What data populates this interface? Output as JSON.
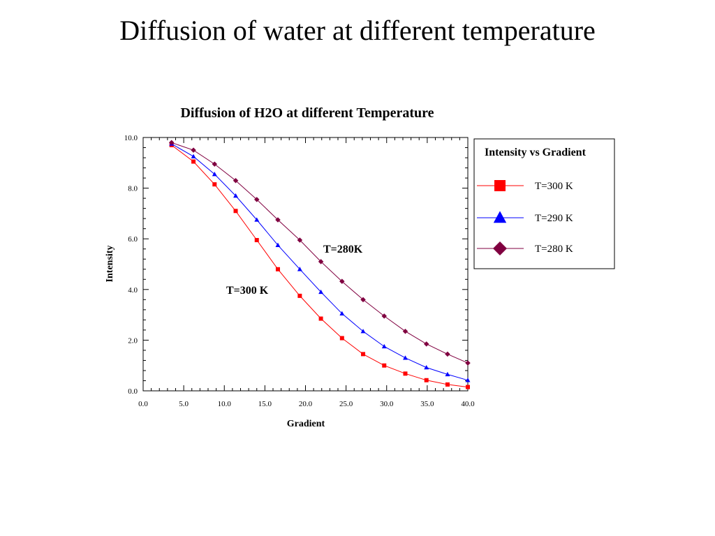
{
  "slide": {
    "title": "Diffusion of water at different temperature"
  },
  "colors": {
    "t300": "#ff0000",
    "t290": "#0000ff",
    "t280": "#800040"
  },
  "chart_data": {
    "type": "line",
    "title": "Diffusion of H2O at different Temperature",
    "xlabel": "Gradient",
    "ylabel": "Intensity",
    "xlim": [
      0.0,
      40.0
    ],
    "ylim": [
      0.0,
      10.0
    ],
    "x_ticks": [
      "0.0",
      "5.0",
      "10.0",
      "15.0",
      "20.0",
      "25.0",
      "30.0",
      "35.0",
      "40.0"
    ],
    "y_ticks": [
      "0.0",
      "2.0",
      "4.0",
      "6.0",
      "8.0",
      "10.0"
    ],
    "x": [
      3.5,
      6.2,
      8.8,
      11.4,
      14.0,
      16.6,
      19.3,
      21.9,
      24.5,
      27.1,
      29.7,
      32.3,
      34.9,
      37.5,
      40.0
    ],
    "series": [
      {
        "name": "T=300 K",
        "marker": "square",
        "color": "#ff0000",
        "values": [
          9.7,
          9.05,
          8.15,
          7.1,
          5.95,
          4.8,
          3.75,
          2.85,
          2.08,
          1.45,
          1.0,
          0.68,
          0.42,
          0.25,
          0.15
        ]
      },
      {
        "name": "T=290 K",
        "marker": "triangle",
        "color": "#0000ff",
        "values": [
          9.75,
          9.25,
          8.55,
          7.7,
          6.75,
          5.75,
          4.8,
          3.9,
          3.05,
          2.35,
          1.75,
          1.3,
          0.92,
          0.65,
          0.42
        ]
      },
      {
        "name": "T=280 K",
        "marker": "diamond",
        "color": "#800040",
        "values": [
          9.8,
          9.5,
          8.95,
          8.3,
          7.55,
          6.75,
          5.95,
          5.1,
          4.32,
          3.6,
          2.95,
          2.35,
          1.85,
          1.45,
          1.1
        ]
      }
    ],
    "annotations": [
      "T=280K",
      "T=300  K"
    ],
    "legend": {
      "title": "Intensity  vs  Gradient",
      "placement": "right"
    },
    "grid": false
  }
}
